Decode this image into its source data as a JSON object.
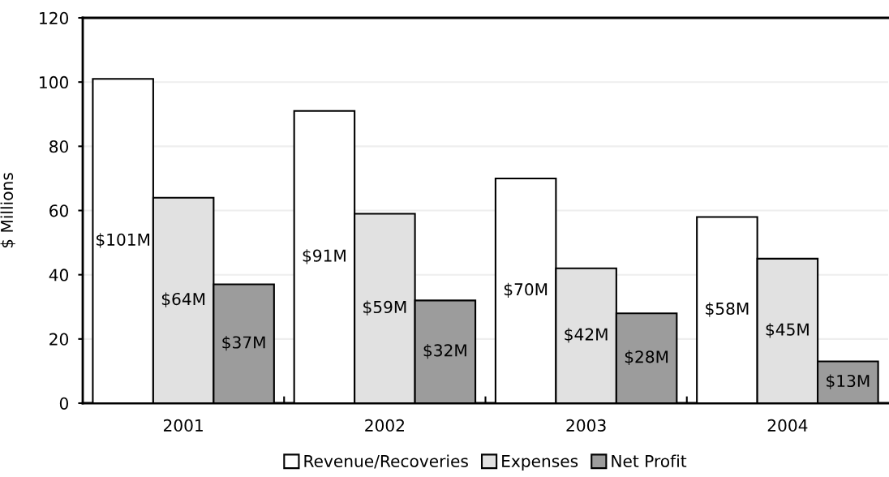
{
  "chart_data": {
    "type": "bar",
    "categories": [
      "2001",
      "2002",
      "2003",
      "2004"
    ],
    "ylabel": "$ Millions",
    "ylim": [
      0,
      120
    ],
    "yticks": [
      0,
      20,
      40,
      60,
      80,
      100,
      120
    ],
    "grid": "y",
    "legend": "bottom",
    "series": [
      {
        "name": "Revenue/Recoveries",
        "color": "#ffffff",
        "values": [
          101,
          91,
          70,
          58
        ],
        "value_labels": [
          "$101M",
          "$91M",
          "$70M",
          "$58M"
        ]
      },
      {
        "name": "Expenses",
        "color": "#e1e1e1",
        "values": [
          64,
          59,
          42,
          45
        ],
        "value_labels": [
          "$64M",
          "$59M",
          "$42M",
          "$45M"
        ]
      },
      {
        "name": "Net Profit",
        "color": "#9c9c9c",
        "values": [
          37,
          32,
          28,
          13
        ],
        "value_labels": [
          "$37M",
          "$32M",
          "$28M",
          "$13M"
        ]
      }
    ]
  }
}
